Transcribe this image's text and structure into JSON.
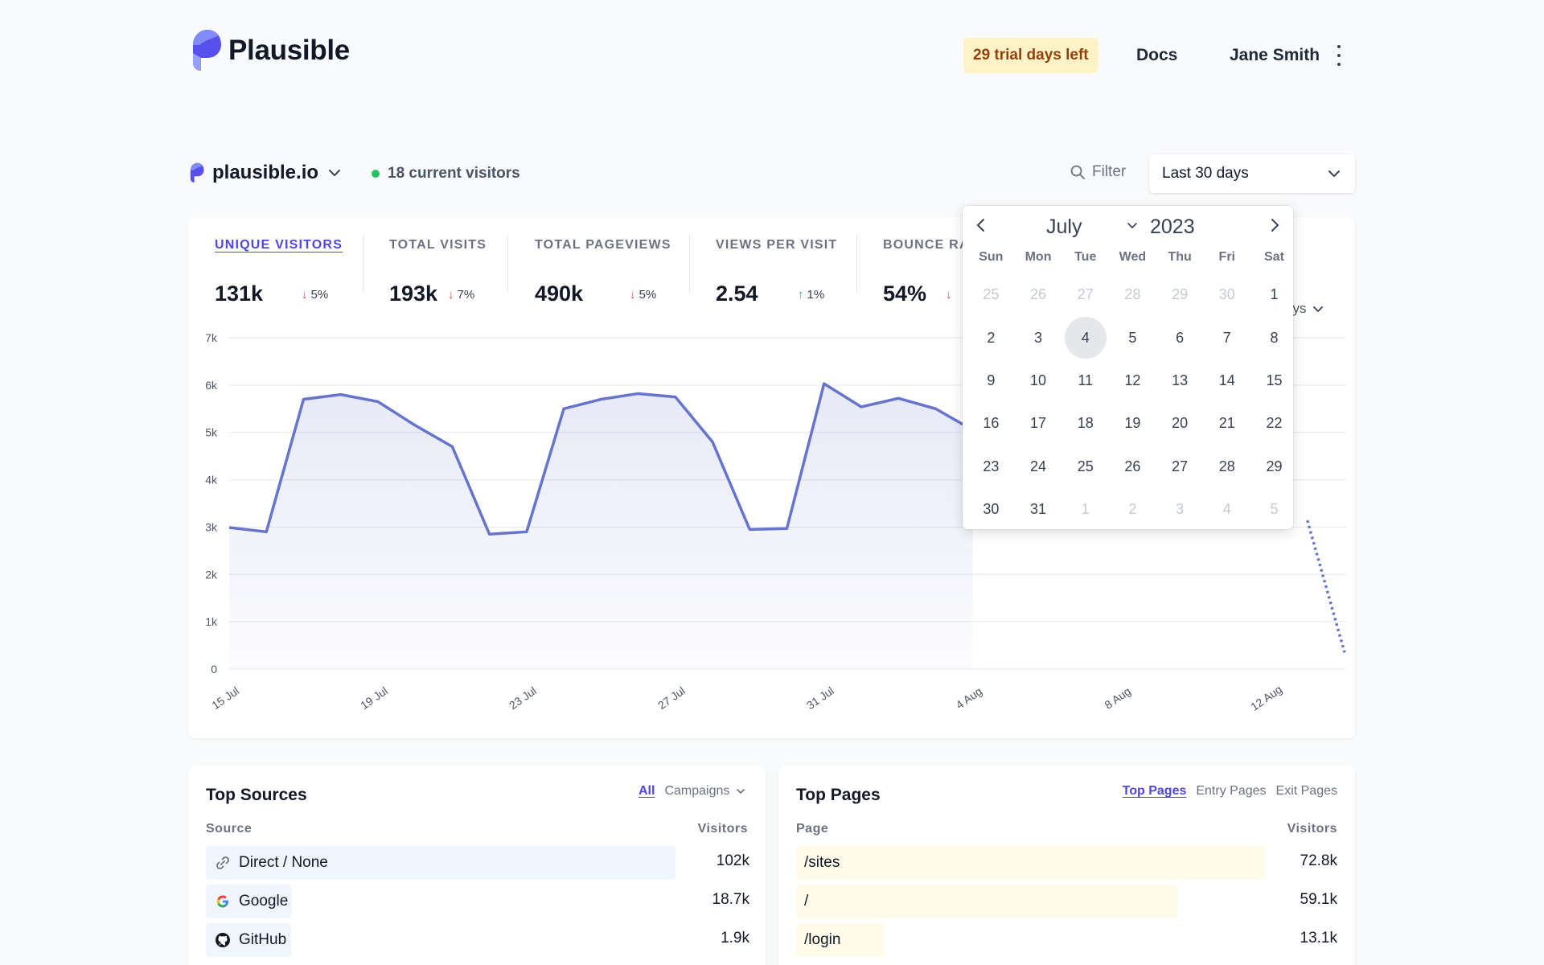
{
  "header": {
    "brand": "Plausible",
    "trial_label": "29 trial days left",
    "docs_label": "Docs",
    "user_name": "Jane Smith"
  },
  "site_bar": {
    "domain": "plausible.io",
    "current_visitors": "18 current visitors",
    "filter_label": "Filter",
    "period_label": "Last 30 days"
  },
  "metrics": [
    {
      "label": "UNIQUE VISITORS",
      "value": "131k",
      "change": "5%",
      "direction": "down",
      "active": true
    },
    {
      "label": "TOTAL VISITS",
      "value": "193k",
      "change": "7%",
      "direction": "down"
    },
    {
      "label": "TOTAL PAGEVIEWS",
      "value": "490k",
      "change": "5%",
      "direction": "down"
    },
    {
      "label": "VIEWS PER VISIT",
      "value": "2.54",
      "change": "1%",
      "direction": "up"
    },
    {
      "label": "BOUNCE RA",
      "value": "54%",
      "change": "",
      "direction": "down"
    }
  ],
  "interval_label": "ays",
  "calendar": {
    "month": "July",
    "year": "2023",
    "weekdays": [
      "Sun",
      "Mon",
      "Tue",
      "Wed",
      "Thu",
      "Fri",
      "Sat"
    ],
    "selected_day": "4",
    "days": [
      {
        "d": "25",
        "m": true
      },
      {
        "d": "26",
        "m": true
      },
      {
        "d": "27",
        "m": true
      },
      {
        "d": "28",
        "m": true
      },
      {
        "d": "29",
        "m": true
      },
      {
        "d": "30",
        "m": true
      },
      {
        "d": "1"
      },
      {
        "d": "2"
      },
      {
        "d": "3"
      },
      {
        "d": "4",
        "s": true
      },
      {
        "d": "5"
      },
      {
        "d": "6"
      },
      {
        "d": "7"
      },
      {
        "d": "8"
      },
      {
        "d": "9"
      },
      {
        "d": "10"
      },
      {
        "d": "11"
      },
      {
        "d": "12"
      },
      {
        "d": "13"
      },
      {
        "d": "14"
      },
      {
        "d": "15"
      },
      {
        "d": "16"
      },
      {
        "d": "17"
      },
      {
        "d": "18"
      },
      {
        "d": "19"
      },
      {
        "d": "20"
      },
      {
        "d": "21"
      },
      {
        "d": "22"
      },
      {
        "d": "23"
      },
      {
        "d": "24"
      },
      {
        "d": "25"
      },
      {
        "d": "26"
      },
      {
        "d": "27"
      },
      {
        "d": "28"
      },
      {
        "d": "29"
      },
      {
        "d": "30"
      },
      {
        "d": "31"
      },
      {
        "d": "1",
        "m": true
      },
      {
        "d": "2",
        "m": true
      },
      {
        "d": "3",
        "m": true
      },
      {
        "d": "4",
        "m": true
      },
      {
        "d": "5",
        "m": true
      }
    ]
  },
  "chart_data": {
    "type": "area",
    "y_ticks": [
      "0",
      "1k",
      "2k",
      "3k",
      "4k",
      "5k",
      "6k",
      "7k"
    ],
    "ylim": [
      0,
      7000
    ],
    "x_ticks": [
      {
        "i": 0,
        "label": "15 Jul"
      },
      {
        "i": 4,
        "label": "19 Jul"
      },
      {
        "i": 8,
        "label": "23 Jul"
      },
      {
        "i": 12,
        "label": "27 Jul"
      },
      {
        "i": 16,
        "label": "31 Jul"
      },
      {
        "i": 20,
        "label": "4 Aug"
      },
      {
        "i": 24,
        "label": "8 Aug"
      },
      {
        "i": 28,
        "label": "12 Aug"
      }
    ],
    "values": [
      2990,
      2900,
      5700,
      5800,
      5650,
      5150,
      4700,
      2850,
      2900,
      5500,
      5700,
      5820,
      5750,
      4800,
      2950,
      2970,
      6030,
      5540,
      5720,
      5500,
      5050,
      null,
      null,
      null,
      null,
      null,
      null,
      null,
      null,
      3140,
      350
    ],
    "dashed_from_index": 29,
    "grid": true,
    "line_color": "#6574cd"
  },
  "top_sources": {
    "title": "Top Sources",
    "tabs": [
      "All",
      "Campaigns"
    ],
    "col_left": "Source",
    "col_right": "Visitors",
    "rows": [
      {
        "label": "Direct / None",
        "value": "102k",
        "share": 1.0,
        "icon": "link-icon"
      },
      {
        "label": "Google",
        "value": "18.7k",
        "share": 0.183,
        "icon": "google-icon"
      },
      {
        "label": "GitHub",
        "value": "1.9k",
        "share": 0.05,
        "icon": "github-icon"
      }
    ]
  },
  "top_pages": {
    "title": "Top Pages",
    "tabs": [
      "Top Pages",
      "Entry Pages",
      "Exit Pages"
    ],
    "col_left": "Page",
    "col_right": "Visitors",
    "rows": [
      {
        "label": "/sites",
        "value": "72.8k",
        "share": 1.0
      },
      {
        "label": "/",
        "value": "59.1k",
        "share": 0.812
      },
      {
        "label": "/login",
        "value": "13.1k",
        "share": 0.18
      }
    ]
  },
  "colors": {
    "accent": "#4f46e5",
    "line": "#6574cd",
    "source_bar": "#eff6ff",
    "page_bar": "#fefce8"
  }
}
